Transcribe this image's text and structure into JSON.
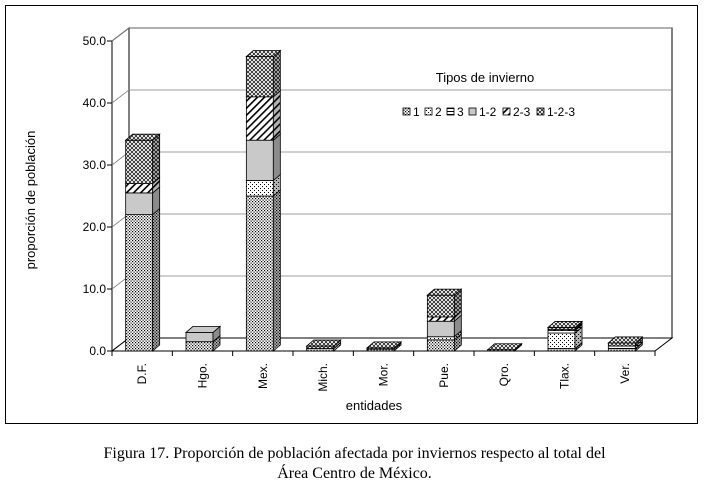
{
  "caption": {
    "line1": "Figura 17. Proporción de población afectada por inviernos respecto al total del",
    "line2": "Área Centro de México."
  },
  "chart_data": {
    "type": "bar",
    "stacked": true,
    "three_d": true,
    "title": "",
    "xlabel": "entidades",
    "ylabel": "proporción de población",
    "ylim": [
      0,
      50
    ],
    "yticks": [
      "0.0",
      "10.0",
      "20.0",
      "30.0",
      "40.0",
      "50.0"
    ],
    "grid": true,
    "legend": {
      "title": "Tipos de invierno",
      "placement": "top-right"
    },
    "categories": [
      "D.F.",
      "Hgo.",
      "Mex.",
      "Mich.",
      "Mor.",
      "Pue.",
      "Qro.",
      "Tlax.",
      "Ver."
    ],
    "series": [
      {
        "name": "1",
        "pattern": "dots-dense",
        "values": [
          22.0,
          1.5,
          25.0,
          0.4,
          0.3,
          1.8,
          0.0,
          0.4,
          0.4
        ]
      },
      {
        "name": "2",
        "pattern": "dots-sparse",
        "values": [
          0.0,
          0.0,
          2.5,
          0.0,
          0.0,
          0.5,
          0.0,
          2.5,
          0.0
        ]
      },
      {
        "name": "3",
        "pattern": "horizontal-lines",
        "values": [
          0.0,
          0.0,
          0.0,
          0.0,
          0.0,
          0.0,
          0.0,
          0.4,
          0.4
        ]
      },
      {
        "name": "1-2",
        "pattern": "solid-gray",
        "values": [
          3.5,
          1.5,
          6.5,
          0.0,
          0.0,
          2.5,
          0.0,
          0.0,
          0.0
        ]
      },
      {
        "name": "2-3",
        "pattern": "diagonal-lines",
        "values": [
          1.5,
          0.0,
          7.0,
          0.0,
          0.0,
          0.7,
          0.0,
          0.2,
          0.0
        ]
      },
      {
        "name": "1-2-3",
        "pattern": "crosshatch",
        "values": [
          7.0,
          0.0,
          6.5,
          0.4,
          0.2,
          3.5,
          0.2,
          0.3,
          0.5
        ]
      }
    ]
  }
}
